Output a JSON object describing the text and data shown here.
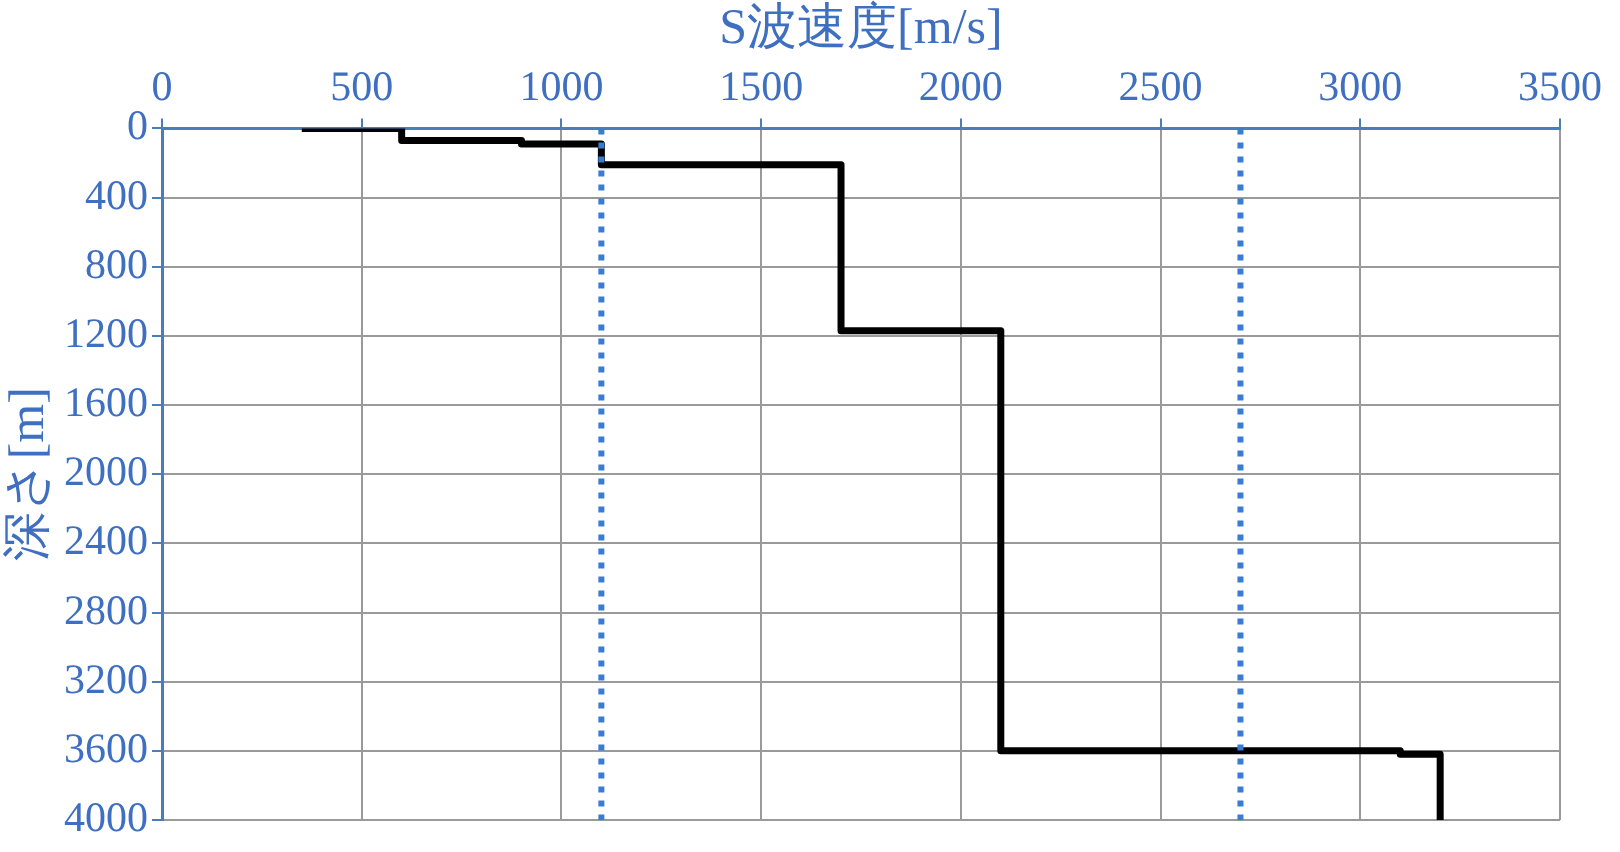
{
  "chart_data": {
    "type": "line",
    "xlabel": "S波速度[m/s]",
    "ylabel": "深さ[m]",
    "xlim": [
      0,
      3500
    ],
    "xticks": [
      0,
      500,
      1000,
      1500,
      2000,
      2500,
      3000,
      3500
    ],
    "ylim": [
      4000,
      0
    ],
    "yticks": [
      0,
      400,
      800,
      1200,
      1600,
      2000,
      2400,
      2800,
      3200,
      3600,
      4000
    ],
    "grid": true,
    "legend": false,
    "marker": "none",
    "line_style": "solid",
    "series": [
      {
        "color": "#000000",
        "x": [
          350,
          600,
          600,
          900,
          900,
          1100,
          1100,
          1700,
          1700,
          2100,
          2100,
          3100,
          3100,
          3200,
          3200
        ],
        "values": [
          0,
          0,
          70,
          70,
          90,
          90,
          210,
          210,
          1170,
          1170,
          3600,
          3600,
          3620,
          3620,
          4000
        ]
      }
    ],
    "ref_lines": [
      {
        "axis": "x",
        "value": 1100,
        "color": "#3a7bd5",
        "line_style": "dotted"
      },
      {
        "axis": "x",
        "value": 2700,
        "color": "#3a7bd5",
        "line_style": "dotted"
      }
    ]
  }
}
